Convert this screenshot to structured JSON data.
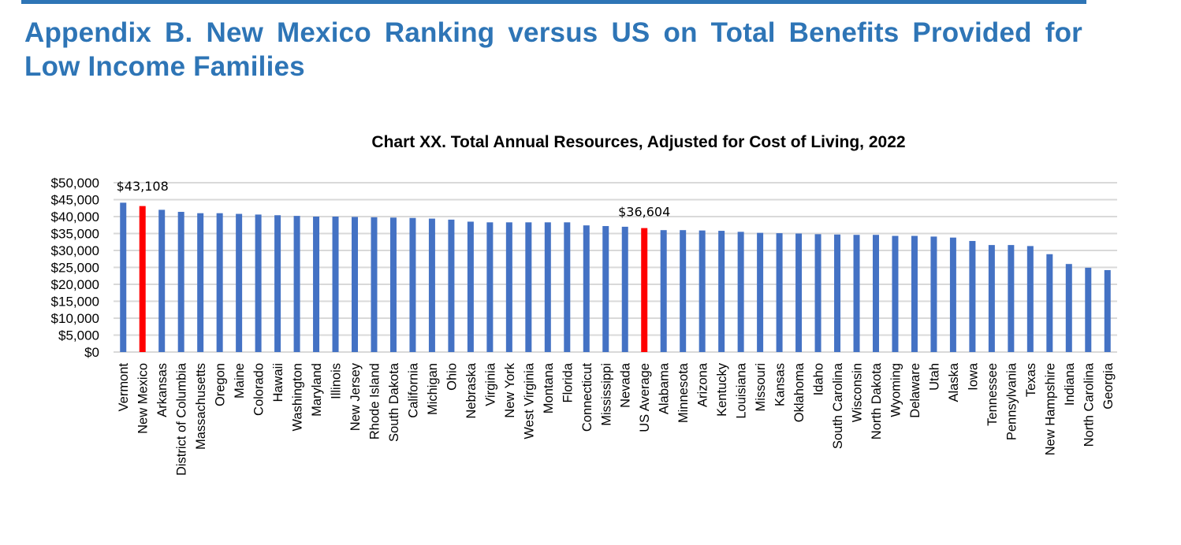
{
  "page": {
    "heading": "Appendix B. New Mexico Ranking versus US on Total Benefits Provided for Low Income Families",
    "accent_color": "#2E75B6"
  },
  "chart_data": {
    "type": "bar",
    "title": "Chart XX. Total Annual Resources, Adjusted for Cost of Living, 2022",
    "xlabel": "",
    "ylabel": "",
    "ylim": [
      0,
      50000
    ],
    "ytick_step": 5000,
    "ytick_labels": [
      "$0",
      "$5,000",
      "$10,000",
      "$15,000",
      "$20,000",
      "$25,000",
      "$30,000",
      "$35,000",
      "$40,000",
      "$45,000",
      "$50,000"
    ],
    "grid": true,
    "legend": "none",
    "default_color": "#4472C4",
    "highlight_color": "#FF0000",
    "highlight_categories": [
      "New Mexico",
      "US Average"
    ],
    "data_labels": [
      {
        "category": "New Mexico",
        "text": "$43,108"
      },
      {
        "category": "US Average",
        "text": "$36,604"
      }
    ],
    "categories": [
      "Vermont",
      "New Mexico",
      "Arkansas",
      "District of Columbia",
      "Massachusetts",
      "Oregon",
      "Maine",
      "Colorado",
      "Hawaii",
      "Washington",
      "Maryland",
      "Illinois",
      "New Jersey",
      "Rhode Island",
      "South Dakota",
      "California",
      "Michigan",
      "Ohio",
      "Nebraska",
      "Virginia",
      "New York",
      "West Virginia",
      "Montana",
      "Florida",
      "Connecticut",
      "Mississippi",
      "Nevada",
      "US Average",
      "Alabama",
      "Minnesota",
      "Arizona",
      "Kentucky",
      "Louisiana",
      "Missouri",
      "Kansas",
      "Oklahoma",
      "Idaho",
      "South Carolina",
      "Wisconsin",
      "North Dakota",
      "Wyoming",
      "Delaware",
      "Utah",
      "Alaska",
      "Iowa",
      "Tennessee",
      "Pennsylvania",
      "Texas",
      "New Hampshire",
      "Indiana",
      "North Carolina",
      "Georgia"
    ],
    "values": [
      44100,
      43108,
      42000,
      41400,
      41000,
      41000,
      40800,
      40600,
      40400,
      40200,
      40000,
      40000,
      39900,
      39800,
      39700,
      39600,
      39400,
      39100,
      38500,
      38300,
      38300,
      38300,
      38300,
      38300,
      37400,
      37200,
      37000,
      36604,
      36000,
      36000,
      35900,
      35800,
      35500,
      35200,
      35100,
      35000,
      34800,
      34700,
      34600,
      34600,
      34300,
      34300,
      34100,
      33800,
      32800,
      31600,
      31600,
      31300,
      28900,
      26000,
      24900,
      24200
    ]
  }
}
